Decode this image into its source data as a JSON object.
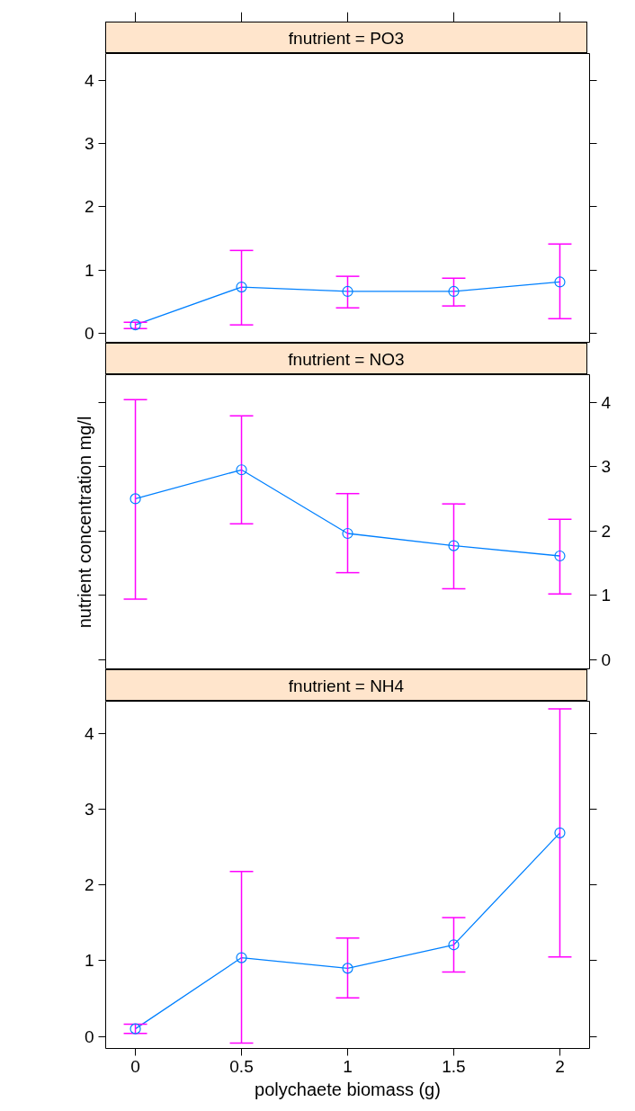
{
  "chart_data": [
    {
      "type": "line",
      "title": "fnutrient = PO3",
      "x": [
        0,
        0.5,
        1,
        1.5,
        2
      ],
      "xlim": [
        -0.14,
        2.14
      ],
      "xticks": [
        0,
        0.5,
        1,
        1.5,
        2
      ],
      "ylim": [
        -0.16,
        4.43
      ],
      "yticks": [
        0,
        1,
        2,
        3,
        4
      ],
      "tick_labels": "y",
      "marker": "circle",
      "line_style": "solid",
      "grid": false,
      "series": [
        {
          "color": "#0080ff",
          "values": [
            0.13,
            0.73,
            0.66,
            0.66,
            0.81
          ],
          "errors": [
            [
              0.07,
              0.17
            ],
            [
              0.13,
              1.31
            ],
            [
              0.4,
              0.9
            ],
            [
              0.43,
              0.87
            ],
            [
              0.23,
              1.41
            ]
          ]
        }
      ]
    },
    {
      "type": "line",
      "title": "fnutrient = NO3",
      "ylabel": "nutrient concentration mg/l",
      "x": [
        0,
        0.5,
        1,
        1.5,
        2
      ],
      "xlim": [
        -0.14,
        2.14
      ],
      "xticks": [
        0,
        0.5,
        1,
        1.5,
        2
      ],
      "ylim": [
        -0.16,
        4.43
      ],
      "yticks": [
        0,
        1,
        2,
        3,
        4
      ],
      "tick_labels": "y",
      "marker": "circle",
      "line_style": "solid",
      "grid": false,
      "series": [
        {
          "color": "#0080ff",
          "values": [
            2.5,
            2.95,
            1.96,
            1.77,
            1.61
          ],
          "errors": [
            [
              0.94,
              4.04
            ],
            [
              2.11,
              3.79
            ],
            [
              1.35,
              2.58
            ],
            [
              1.1,
              2.42
            ],
            [
              1.02,
              2.18
            ]
          ]
        }
      ]
    },
    {
      "type": "line",
      "title": "fnutrient = NH4",
      "xlabel": "polychaete biomass (g)",
      "x": [
        0,
        0.5,
        1,
        1.5,
        2
      ],
      "xlim": [
        -0.14,
        2.14
      ],
      "xticks": [
        0,
        0.5,
        1,
        1.5,
        2
      ],
      "ylim": [
        -0.16,
        4.43
      ],
      "yticks": [
        0,
        1,
        2,
        3,
        4
      ],
      "marker": "circle",
      "line_style": "solid",
      "grid": false,
      "series": [
        {
          "color": "#0080ff",
          "values": [
            0.1,
            1.04,
            0.9,
            1.21,
            2.69
          ],
          "errors": [
            [
              0.04,
              0.16
            ],
            [
              -0.09,
              2.18
            ],
            [
              0.51,
              1.3
            ],
            [
              0.85,
              1.57
            ],
            [
              1.05,
              4.33
            ]
          ]
        }
      ]
    }
  ]
}
